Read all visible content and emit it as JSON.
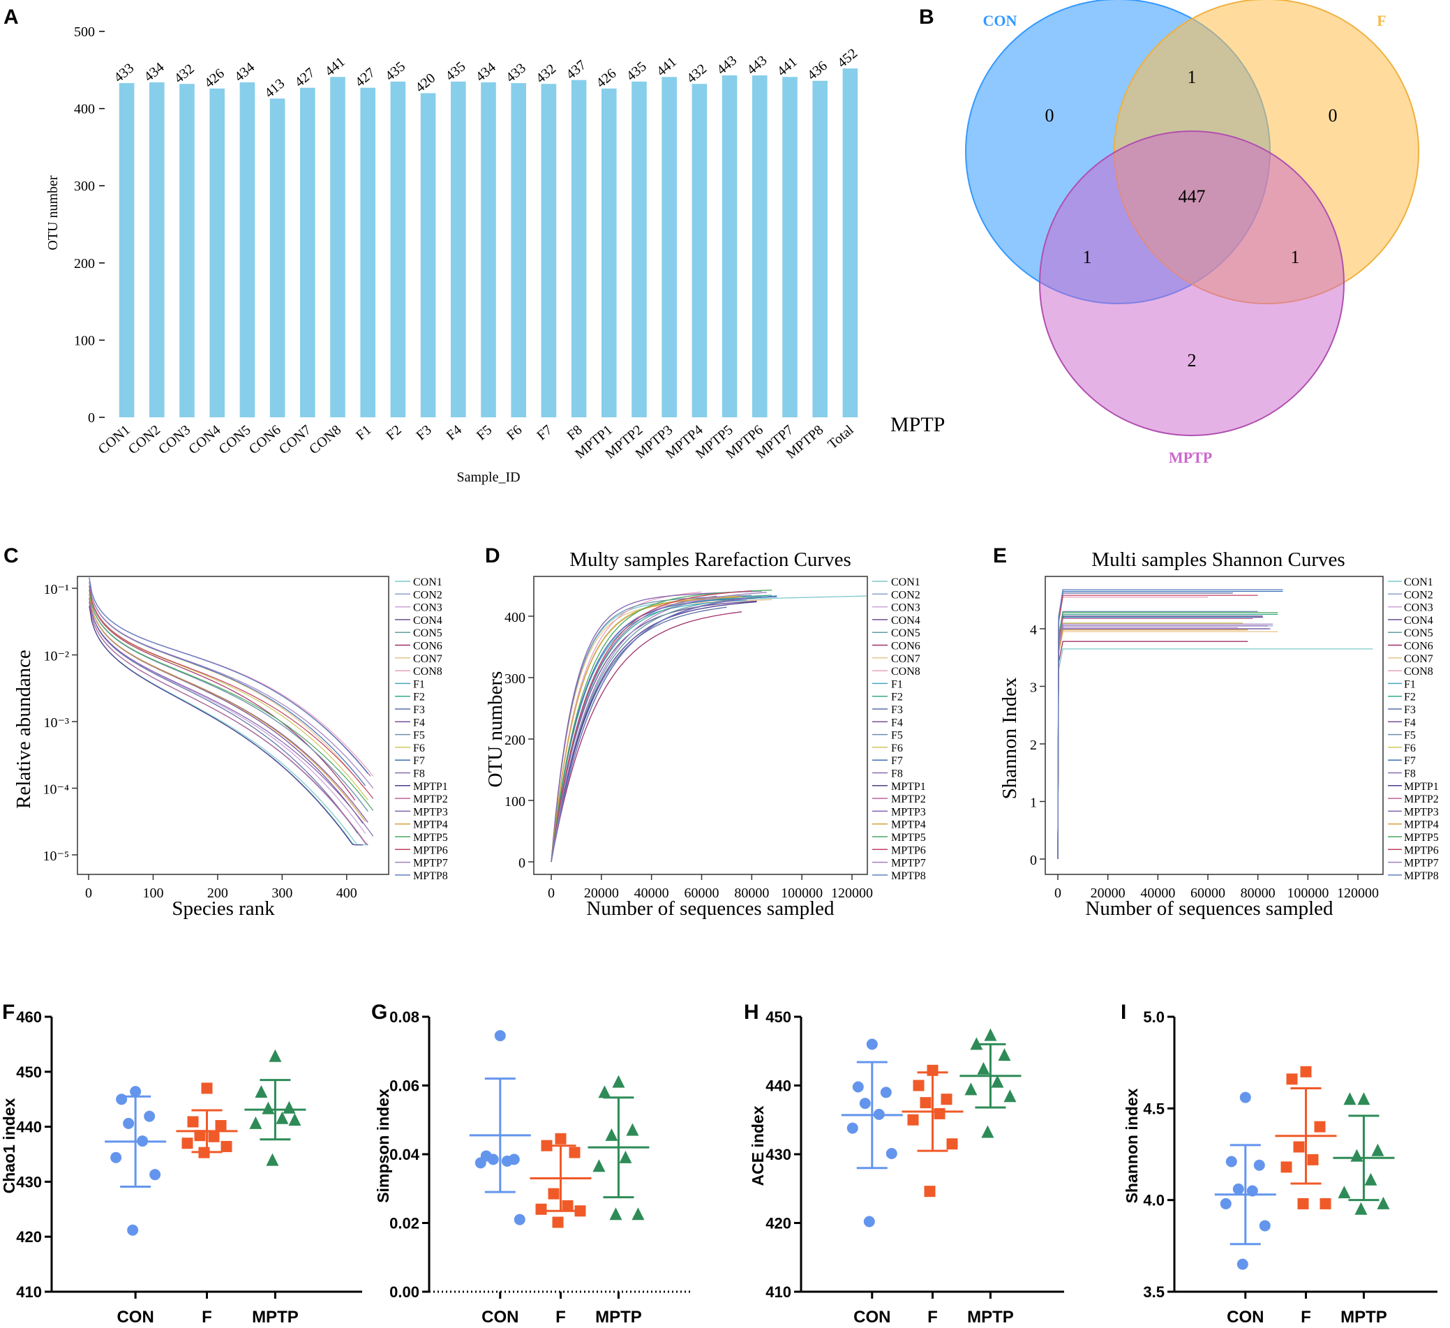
{
  "panel_letters": [
    "A",
    "B",
    "C",
    "D",
    "E",
    "F",
    "G",
    "H",
    "I"
  ],
  "chart_data": [
    {
      "panel": "A",
      "type": "bar",
      "title": "",
      "xlabel": "Sample_ID",
      "ylabel": "OTU number",
      "ylim": [
        0,
        500
      ],
      "yticks": [
        0,
        100,
        200,
        300,
        400,
        500
      ],
      "bar_color": "#87CEEB",
      "categories": [
        "CON1",
        "CON2",
        "CON3",
        "CON4",
        "CON5",
        "CON6",
        "CON7",
        "CON8",
        "F1",
        "F2",
        "F3",
        "F4",
        "F5",
        "F6",
        "F7",
        "F8",
        "MPTP1",
        "MPTP2",
        "MPTP3",
        "MPTP4",
        "MPTP5",
        "MPTP6",
        "MPTP7",
        "MPTP8",
        "Total"
      ],
      "values": [
        433,
        434,
        432,
        426,
        434,
        413,
        427,
        441,
        427,
        435,
        420,
        435,
        434,
        433,
        432,
        437,
        426,
        435,
        441,
        432,
        443,
        443,
        441,
        436,
        452
      ],
      "annotation": "MPTP"
    },
    {
      "panel": "B",
      "type": "venn",
      "sets": [
        {
          "name": "CON",
          "color": "#3399FF"
        },
        {
          "name": "F",
          "color": "#FFC04D"
        },
        {
          "name": "MPTP",
          "color": "#CC66CC"
        }
      ],
      "regions": {
        "CON_only": "0",
        "F_only": "0",
        "MPTP_only": "2",
        "CON_F": "1",
        "CON_MPTP": "1",
        "F_MPTP": "1",
        "all": "447"
      }
    },
    {
      "panel": "C",
      "type": "line",
      "title": "",
      "xlabel": "Species rank",
      "ylabel": "Relative abundance",
      "xlim": [
        0,
        450
      ],
      "xticks": [
        0,
        100,
        200,
        300,
        400
      ],
      "yscale": "log",
      "yticks": [
        "10⁻¹",
        "10⁻²",
        "10⁻³",
        "10⁻⁴",
        "10⁻⁵"
      ],
      "legend": [
        "CON1",
        "CON2",
        "CON3",
        "CON4",
        "CON5",
        "CON6",
        "CON7",
        "CON8",
        "F1",
        "F2",
        "F3",
        "F4",
        "F5",
        "F6",
        "F7",
        "F8",
        "MPTP1",
        "MPTP2",
        "MPTP3",
        "MPTP4",
        "MPTP5",
        "MPTP6",
        "MPTP7",
        "MPTP8"
      ],
      "series_end_rank": [
        433,
        434,
        432,
        426,
        434,
        413,
        427,
        441,
        427,
        435,
        420,
        435,
        434,
        433,
        432,
        437,
        426,
        435,
        441,
        432,
        443,
        443,
        441,
        436
      ]
    },
    {
      "panel": "D",
      "type": "line",
      "title": "Multy samples Rarefaction Curves",
      "xlabel": "Number of sequences sampled",
      "ylabel": "OTU numbers",
      "xlim": [
        0,
        130000
      ],
      "ylim": [
        0,
        460
      ],
      "xticks": [
        0,
        20000,
        40000,
        60000,
        80000,
        100000,
        120000
      ],
      "yticks": [
        0,
        100,
        200,
        300,
        400
      ],
      "legend": [
        "CON1",
        "CON2",
        "CON3",
        "CON4",
        "CON5",
        "CON6",
        "CON7",
        "CON8",
        "F1",
        "F2",
        "F3",
        "F4",
        "F5",
        "F6",
        "F7",
        "F8",
        "MPTP1",
        "MPTP2",
        "MPTP3",
        "MPTP4",
        "MPTP5",
        "MPTP6",
        "MPTP7",
        "MPTP8"
      ],
      "series_final_otu": [
        433,
        434,
        432,
        426,
        434,
        413,
        427,
        441,
        427,
        435,
        420,
        435,
        434,
        433,
        432,
        437,
        426,
        435,
        441,
        432,
        443,
        443,
        441,
        436
      ],
      "series_max_sequences": [
        126000,
        86000,
        72000,
        82000,
        84000,
        76000,
        88000,
        60000,
        78000,
        88000,
        70000,
        85000,
        80000,
        74000,
        90000,
        66000,
        82000,
        78000,
        84000,
        76000,
        88000,
        80000,
        86000,
        90000
      ]
    },
    {
      "panel": "E",
      "type": "line",
      "title": "Multi samples Shannon Curves",
      "xlabel": "Number of sequences sampled",
      "ylabel": "Shannon Index",
      "xlim": [
        0,
        130000
      ],
      "ylim": [
        0,
        4.8
      ],
      "xticks": [
        0,
        20000,
        40000,
        60000,
        80000,
        100000,
        120000
      ],
      "yticks": [
        0,
        1,
        2,
        3,
        4
      ],
      "legend": [
        "CON1",
        "CON2",
        "CON3",
        "CON4",
        "CON5",
        "CON6",
        "CON7",
        "CON8",
        "F1",
        "F2",
        "F3",
        "F4",
        "F5",
        "F6",
        "F7",
        "F8",
        "MPTP1",
        "MPTP2",
        "MPTP3",
        "MPTP4",
        "MPTP5",
        "MPTP6",
        "MPTP7",
        "MPTP8"
      ],
      "series_plateau": [
        3.65,
        4.05,
        4.02,
        4.2,
        4.0,
        3.78,
        3.95,
        4.55,
        4.2,
        4.25,
        4.62,
        4.0,
        4.3,
        4.1,
        4.65,
        4.0,
        4.22,
        4.18,
        4.05,
        3.98,
        4.28,
        4.58,
        4.08,
        4.68
      ],
      "series_max_sequences": [
        126000,
        86000,
        72000,
        82000,
        84000,
        76000,
        88000,
        60000,
        78000,
        88000,
        70000,
        85000,
        80000,
        74000,
        90000,
        66000,
        82000,
        78000,
        84000,
        76000,
        88000,
        80000,
        86000,
        90000
      ]
    },
    {
      "panel": "F",
      "type": "scatter",
      "ylabel": "Chao1 index",
      "ylim": [
        410,
        460
      ],
      "yticks": [
        "410",
        "420",
        "430",
        "440",
        "450",
        "460"
      ],
      "categories": [
        "CON",
        "F",
        "MPTP"
      ],
      "groups": [
        {
          "name": "CON",
          "color": "#6495ED",
          "marker": "circle",
          "values": [
            446.4,
            445,
            441.9,
            440.6,
            437.4,
            434.4,
            431.3,
            421.2
          ],
          "mean": 437.3,
          "sd": 8.2
        },
        {
          "name": "F",
          "color": "#F05A28",
          "marker": "square",
          "values": [
            447,
            440.9,
            440.2,
            438.4,
            438.2,
            437,
            436.4,
            435.3
          ],
          "mean": 439.2,
          "sd": 3.8
        },
        {
          "name": "MPTP",
          "color": "#2E8B57",
          "marker": "triangle",
          "values": [
            452.8,
            446.3,
            443.4,
            443.3,
            441.5,
            440.6,
            441.2,
            433.9
          ],
          "mean": 443.1,
          "sd": 5.4
        }
      ]
    },
    {
      "panel": "G",
      "type": "scatter",
      "ylabel": "Simpson index",
      "ylim": [
        0,
        0.08
      ],
      "yticks": [
        "0.00",
        "0.02",
        "0.04",
        "0.06",
        "0.08"
      ],
      "categories": [
        "CON",
        "F",
        "MPTP"
      ],
      "groups": [
        {
          "name": "CON",
          "color": "#6495ED",
          "marker": "circle",
          "values": [
            0.0745,
            0.0395,
            0.0385,
            0.0385,
            0.038,
            0.0375,
            0.021
          ],
          "mean": 0.0455,
          "sd": 0.0165
        },
        {
          "name": "F",
          "color": "#F05A28",
          "marker": "square",
          "values": [
            0.0445,
            0.0425,
            0.0405,
            0.0285,
            0.025,
            0.024,
            0.0235,
            0.0202
          ],
          "mean": 0.033,
          "sd": 0.0095
        },
        {
          "name": "MPTP",
          "color": "#2E8B57",
          "marker": "triangle",
          "values": [
            0.061,
            0.058,
            0.047,
            0.0455,
            0.039,
            0.0365,
            0.0225,
            0.0225
          ],
          "mean": 0.042,
          "sd": 0.0145
        }
      ]
    },
    {
      "panel": "H",
      "type": "scatter",
      "ylabel": "ACE index",
      "ylim": [
        410,
        450
      ],
      "yticks": [
        "410",
        "420",
        "430",
        "440",
        "450"
      ],
      "categories": [
        "CON",
        "F",
        "MPTP"
      ],
      "groups": [
        {
          "name": "CON",
          "color": "#6495ED",
          "marker": "circle",
          "values": [
            446,
            439.8,
            439,
            437.4,
            435.8,
            433.8,
            430.1,
            420.2
          ],
          "mean": 435.7,
          "sd": 7.7
        },
        {
          "name": "F",
          "color": "#F05A28",
          "marker": "square",
          "values": [
            442.2,
            440,
            438,
            437.5,
            435.9,
            435,
            431.5,
            424.6
          ],
          "mean": 436.2,
          "sd": 5.7
        },
        {
          "name": "MPTP",
          "color": "#2E8B57",
          "marker": "triangle",
          "values": [
            447.3,
            446,
            444.4,
            442.4,
            440.5,
            439.4,
            438.4,
            433.2
          ],
          "mean": 441.4,
          "sd": 4.6
        }
      ]
    },
    {
      "panel": "I",
      "type": "scatter",
      "ylabel": "Shannon index",
      "ylim": [
        3.5,
        5.0
      ],
      "yticks": [
        "3.5",
        "4.0",
        "4.5",
        "5.0"
      ],
      "categories": [
        "CON",
        "F",
        "MPTP"
      ],
      "groups": [
        {
          "name": "CON",
          "color": "#6495ED",
          "marker": "circle",
          "values": [
            4.56,
            4.21,
            4.19,
            4.06,
            4.05,
            3.98,
            3.86,
            3.65
          ],
          "mean": 4.03,
          "sd": 0.27
        },
        {
          "name": "F",
          "color": "#F05A28",
          "marker": "square",
          "values": [
            4.7,
            4.66,
            4.4,
            4.29,
            4.22,
            4.18,
            3.98,
            3.98
          ],
          "mean": 4.35,
          "sd": 0.26
        },
        {
          "name": "MPTP",
          "color": "#2E8B57",
          "marker": "triangle",
          "values": [
            4.55,
            4.55,
            4.27,
            4.24,
            4.11,
            4.04,
            3.98,
            3.95
          ],
          "mean": 4.23,
          "sd": 0.23
        }
      ]
    }
  ]
}
